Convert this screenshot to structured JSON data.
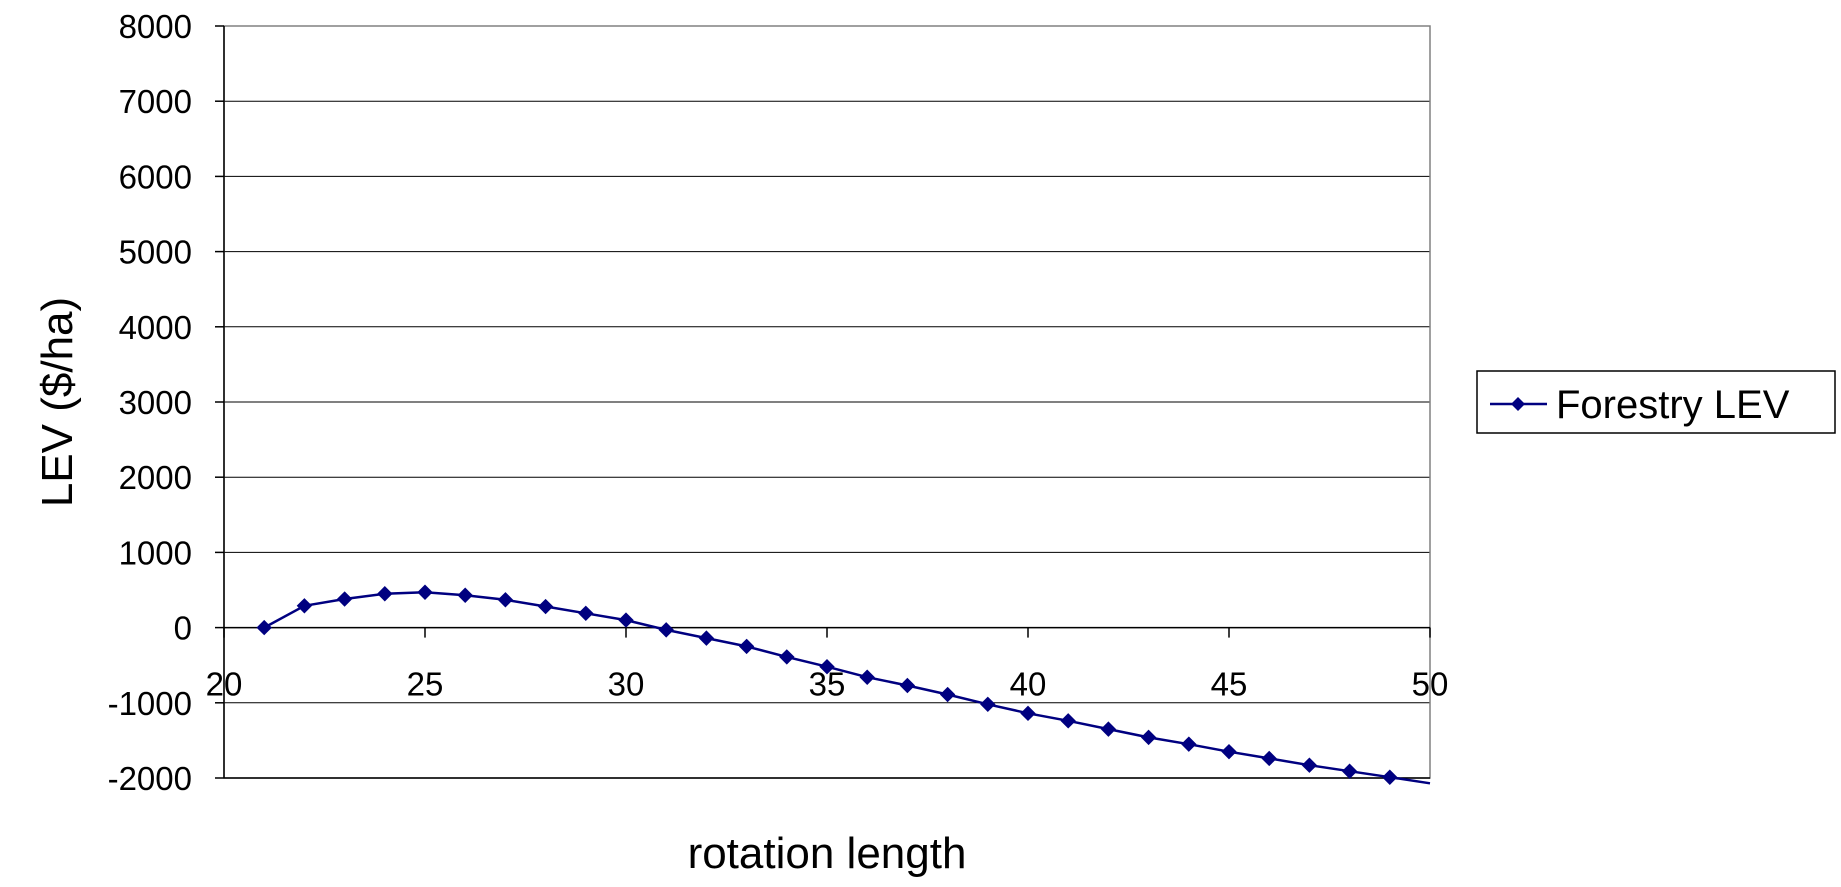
{
  "chart_data": {
    "type": "line",
    "title": "",
    "xlabel": "rotation length",
    "ylabel": "LEV ($/ha)",
    "xlim": [
      20,
      50
    ],
    "ylim": [
      -2000,
      8000
    ],
    "x_ticks": [
      20,
      25,
      30,
      35,
      40,
      45,
      50
    ],
    "y_ticks": [
      -2000,
      -1000,
      0,
      1000,
      2000,
      3000,
      4000,
      5000,
      6000,
      7000,
      8000
    ],
    "grid": "horizontal major gridlines",
    "legend": "right",
    "series": [
      {
        "name": "Forestry LEV",
        "color": "#000080",
        "marker": "diamond",
        "x": [
          21,
          22,
          23,
          24,
          25,
          26,
          27,
          28,
          29,
          30,
          31,
          32,
          33,
          34,
          35,
          36,
          37,
          38,
          39,
          40,
          41,
          42,
          43,
          44,
          45,
          46,
          47,
          48,
          49,
          50
        ],
        "y": [
          0,
          290,
          380,
          450,
          470,
          430,
          370,
          280,
          190,
          100,
          -30,
          -140,
          -250,
          -390,
          -520,
          -660,
          -770,
          -890,
          -1020,
          -1140,
          -1240,
          -1350,
          -1460,
          -1550,
          -1650,
          -1740,
          -1830,
          -1910,
          -1990,
          -2070
        ]
      }
    ]
  }
}
